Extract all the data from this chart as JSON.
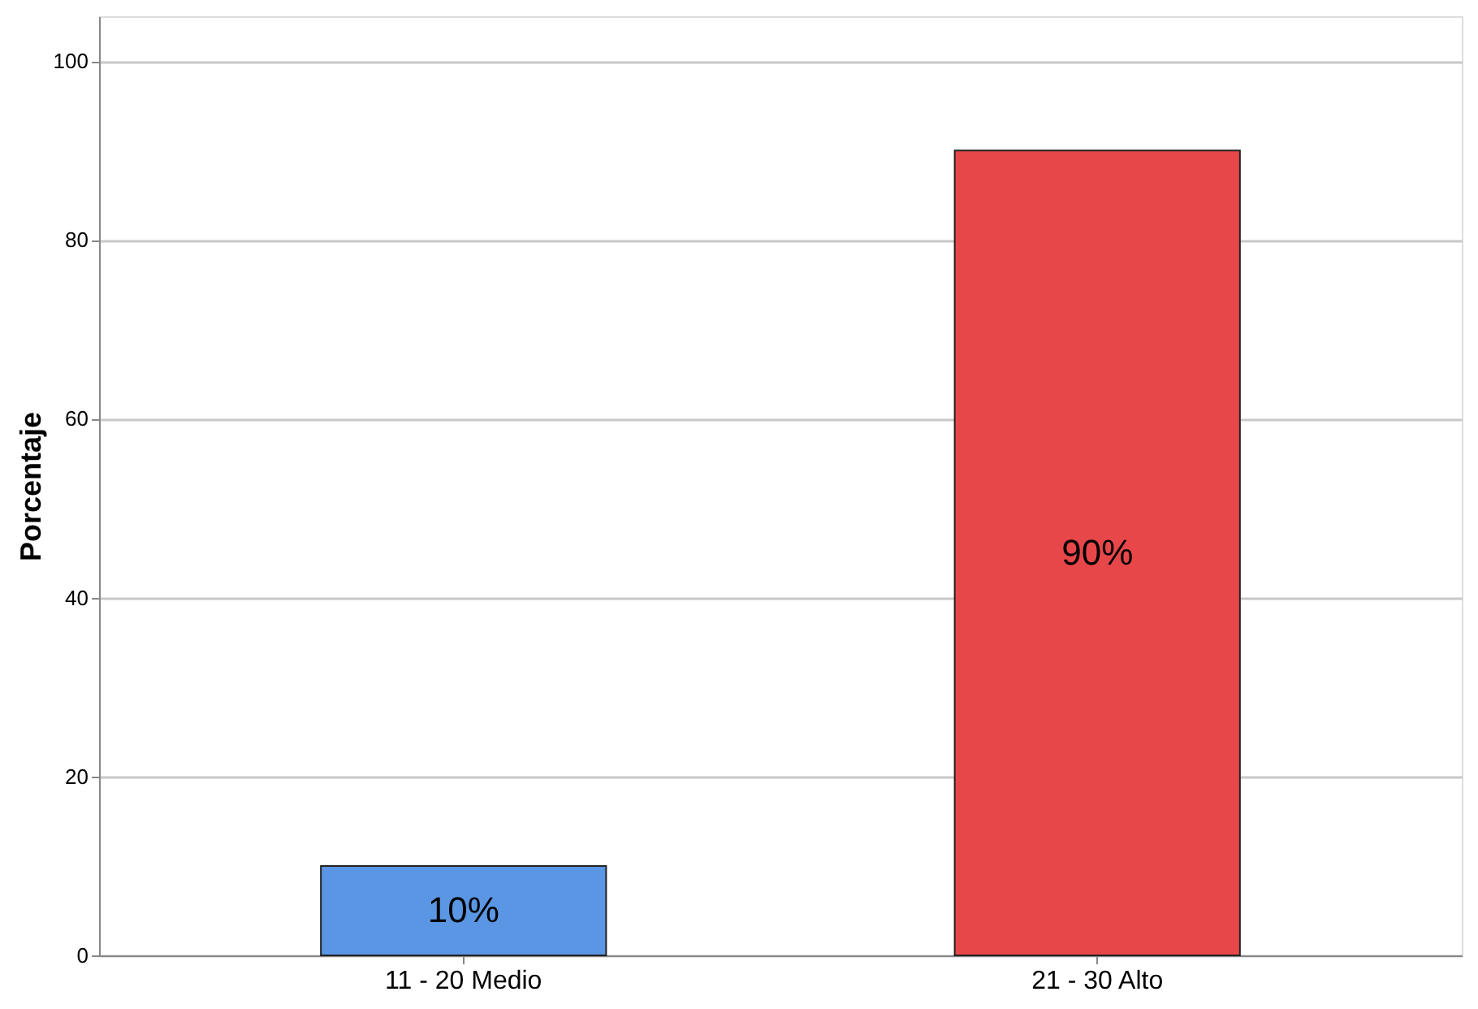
{
  "chart_data": {
    "type": "bar",
    "ylabel": "Porcentaje",
    "categories": [
      "11 - 20 Medio",
      "21 - 30 Alto"
    ],
    "values": [
      10,
      90
    ],
    "colors": [
      "#5a96e3",
      "#e8474a"
    ],
    "value_labels": [
      "10%",
      "90%"
    ],
    "ylim": [
      0,
      105
    ],
    "yticks": [
      0,
      20,
      40,
      60,
      80,
      100
    ],
    "grid": "y"
  }
}
